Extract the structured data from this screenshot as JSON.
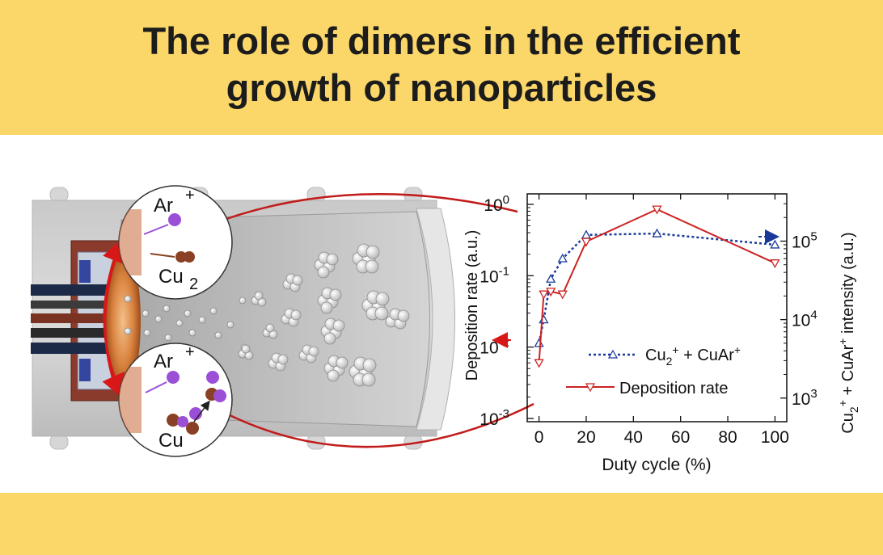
{
  "title": {
    "line1": "The role of dimers in the efficient",
    "line2": "growth of nanoparticles"
  },
  "colors": {
    "banner": "#fbd76a",
    "deposition": "#cc2222",
    "intensity": "#1a3a9a"
  },
  "illustration": {
    "ion_label": "Ar",
    "ion_charge": "+",
    "dimer_label": "Cu",
    "dimer_subscript": "2",
    "monomer_label": "Cu"
  },
  "chart_data": {
    "type": "line",
    "x": [
      0,
      10,
      20,
      50,
      100
    ],
    "series": [
      {
        "name": "Cu2+ + CuAr+",
        "axis": "right",
        "style": "dotted",
        "marker": "triangle-up",
        "x": [
          0,
          2,
          5,
          10,
          20,
          50,
          100
        ],
        "values": [
          5000,
          10000,
          33000,
          60000,
          120000,
          125000,
          90000
        ]
      },
      {
        "name": "Deposition rate",
        "axis": "left",
        "style": "solid",
        "marker": "triangle-down",
        "x": [
          0,
          2,
          5,
          10,
          20,
          50,
          100
        ],
        "values": [
          0.006,
          0.055,
          0.06,
          0.055,
          0.3,
          0.85,
          0.15
        ]
      }
    ],
    "xlabel": "Duty cycle (%)",
    "ylabel_left": "Deposition rate (a.u.)",
    "ylabel_right_parts": [
      "Cu",
      "2",
      "+",
      " + CuAr",
      "+",
      " intensity (a.u.)"
    ],
    "xticks": [
      "0",
      "20",
      "40",
      "60",
      "80",
      "100"
    ],
    "yticks_left": [
      {
        "base": "10",
        "exp": "0"
      },
      {
        "base": "10",
        "exp": "-1"
      },
      {
        "base": "10",
        "exp": "-2"
      },
      {
        "base": "10",
        "exp": "-3"
      }
    ],
    "yticks_right": [
      {
        "base": "10",
        "exp": "5"
      },
      {
        "base": "10",
        "exp": "4"
      },
      {
        "base": "10",
        "exp": "3"
      }
    ],
    "xlim": [
      -5,
      105
    ],
    "ylim_left": [
      0.0009,
      1.4
    ],
    "ylim_right": [
      500,
      400000
    ],
    "yscale": "log",
    "legend": [
      {
        "parts": [
          "Cu",
          "2",
          "+",
          " + CuAr",
          "+"
        ]
      },
      {
        "parts": [
          "Deposition rate"
        ]
      }
    ],
    "legend_position": "lower-right",
    "grid": false
  }
}
